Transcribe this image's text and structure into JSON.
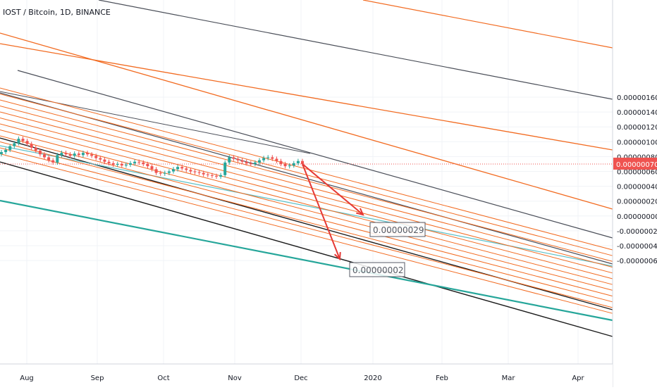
{
  "header": {
    "symbol_title": "IOST / Bitcoin, 1D, BINANCE"
  },
  "colors": {
    "background": "#ffffff",
    "grid": "#f0f3f7",
    "up": "#26a69a",
    "down": "#ef5350",
    "channel_orange": "#f26b21",
    "channel_dark": "#4a4e58",
    "channel_black": "#1c1c1c",
    "teal_line": "#26a69a",
    "thin_teal": "#5bc0c6",
    "arrow": "#e53935",
    "price_tag": "#ef5350",
    "axis_text": "#131722"
  },
  "chart_data": {
    "type": "candlestick",
    "title": "IOST / Bitcoin, 1D, BINANCE",
    "x_tick_labels": [
      "Aug",
      "Sep",
      "Oct",
      "Nov",
      "Dec",
      "2020",
      "Feb",
      "Mar",
      "Apr"
    ],
    "y_tick_labels": [
      "0.00000160",
      "0.00000140",
      "0.00000120",
      "0.00000100",
      "0.00000080",
      "0.00000060",
      "0.00000040",
      "0.00000020",
      "0.00000000",
      "-0.00000020",
      "-0.00000040",
      "-0.00000060"
    ],
    "ylim": [
      -7e-07,
      1.7e-06
    ],
    "last_price_label": "0.00000070",
    "last_price": 7e-07,
    "candles_close": [
      8.6e-07,
      8.9e-07,
      9.4e-07,
      9.8e-07,
      1.04e-06,
      1.01e-06,
      9.7e-07,
      9.2e-07,
      8.8e-07,
      8.3e-07,
      7.9e-07,
      7.5e-07,
      7.2e-07,
      8.2e-07,
      8.5e-07,
      8.3e-07,
      8.1e-07,
      8.4e-07,
      8.2e-07,
      8.5e-07,
      8.3e-07,
      8.1e-07,
      7.8e-07,
      7.6e-07,
      7.3e-07,
      7.1e-07,
      6.9e-07,
      7e-07,
      6.8e-07,
      6.9e-07,
      7.1e-07,
      7.3e-07,
      7.2e-07,
      7e-07,
      6.7e-07,
      6.3e-07,
      5.8e-07,
      5.7e-07,
      5.8e-07,
      6e-07,
      6.3e-07,
      6.6e-07,
      6.4e-07,
      6.2e-07,
      6e-07,
      5.9e-07,
      5.8e-07,
      5.6e-07,
      5.5e-07,
      5.4e-07,
      5.3e-07,
      5.5e-07,
      7.2e-07,
      7.9e-07,
      7.7e-07,
      7.5e-07,
      7.3e-07,
      7.1e-07,
      7e-07,
      7.2e-07,
      7.5e-07,
      7.8e-07,
      7.9e-07,
      7.7e-07,
      7.4e-07,
      7e-07,
      6.7e-07,
      6.8e-07,
      7.1e-07,
      7.4e-07,
      7e-07
    ],
    "annotations": [
      {
        "label": "0.00000029",
        "value": 2.9e-07
      },
      {
        "label": "0.00000002",
        "value": 2e-08
      }
    ],
    "grid": true,
    "legend": "none"
  }
}
